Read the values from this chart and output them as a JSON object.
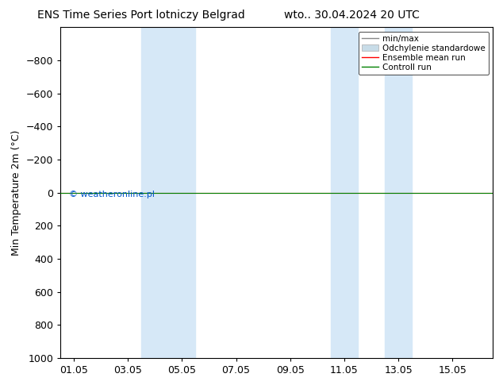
{
  "title_left": "ENS Time Series Port lotniczy Belgrad",
  "title_right": "wto.. 30.04.2024 20 UTC",
  "ylabel": "Min Temperature 2m (°C)",
  "ylim_top": -1000,
  "ylim_bottom": 1000,
  "yticks": [
    -800,
    -600,
    -400,
    -200,
    0,
    200,
    400,
    600,
    800,
    1000
  ],
  "xtick_labels": [
    "01.05",
    "03.05",
    "05.05",
    "07.05",
    "09.05",
    "11.05",
    "13.05",
    "15.05"
  ],
  "xtick_positions": [
    1,
    3,
    5,
    7,
    9,
    11,
    13,
    15
  ],
  "xlim": [
    0.5,
    16.5
  ],
  "shaded_bands": [
    {
      "start": 3.5,
      "end": 4.5
    },
    {
      "start": 4.5,
      "end": 5.5
    },
    {
      "start": 10.5,
      "end": 11.5
    },
    {
      "start": 12.5,
      "end": 13.5
    }
  ],
  "shade_color": "#d6e8f7",
  "green_line_y": 0,
  "red_line_y": 0,
  "green_color": "#008000",
  "red_color": "#ff0000",
  "watermark_text": "© weatheronline.pl",
  "watermark_color": "#0055cc",
  "legend_labels": [
    "min/max",
    "Odchylenie standardowe",
    "Ensemble mean run",
    "Controll run"
  ],
  "legend_line_color": "#888888",
  "legend_shade_color": "#c8dce8",
  "background_color": "#ffffff",
  "font_size": 9,
  "title_font_size": 10
}
